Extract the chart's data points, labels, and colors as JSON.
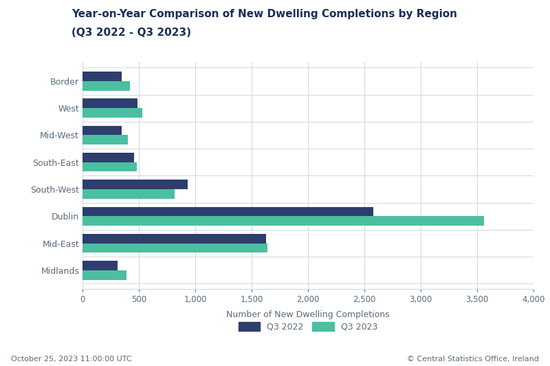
{
  "title_line1": "Year-on-Year Comparison of New Dwelling Completions by Region",
  "title_line2": "(Q3 2022 - Q3 2023)",
  "regions": [
    "Midlands",
    "Mid-East",
    "Dublin",
    "South-West",
    "South-East",
    "Mid-West",
    "West",
    "Border"
  ],
  "q3_2022": [
    310,
    1630,
    2580,
    930,
    460,
    350,
    490,
    350
  ],
  "q3_2023": [
    390,
    1640,
    3560,
    820,
    480,
    400,
    530,
    420
  ],
  "color_2022": "#2d3e6e",
  "color_2023": "#4bbfa0",
  "xlabel": "Number of New Dwelling Completions",
  "legend_labels": [
    "Q3 2022",
    "Q3 2023"
  ],
  "xlim": [
    0,
    4000
  ],
  "xticks": [
    0,
    500,
    1000,
    1500,
    2000,
    2500,
    3000,
    3500,
    4000
  ],
  "xtick_labels": [
    "0",
    "500",
    "1,000",
    "1,500",
    "2,000",
    "2,500",
    "3,000",
    "3,500",
    "4,000"
  ],
  "footer_left": "October 25, 2023 11:00:00 UTC",
  "footer_right": "© Central Statistics Office, Ireland",
  "background_color": "#ffffff",
  "bar_height": 0.35,
  "title_color": "#1a2e5a",
  "axis_label_color": "#5a6a7a",
  "tick_label_color": "#5a6a7a",
  "footer_color": "#5a6a7a",
  "grid_color": "#d0d8e0"
}
